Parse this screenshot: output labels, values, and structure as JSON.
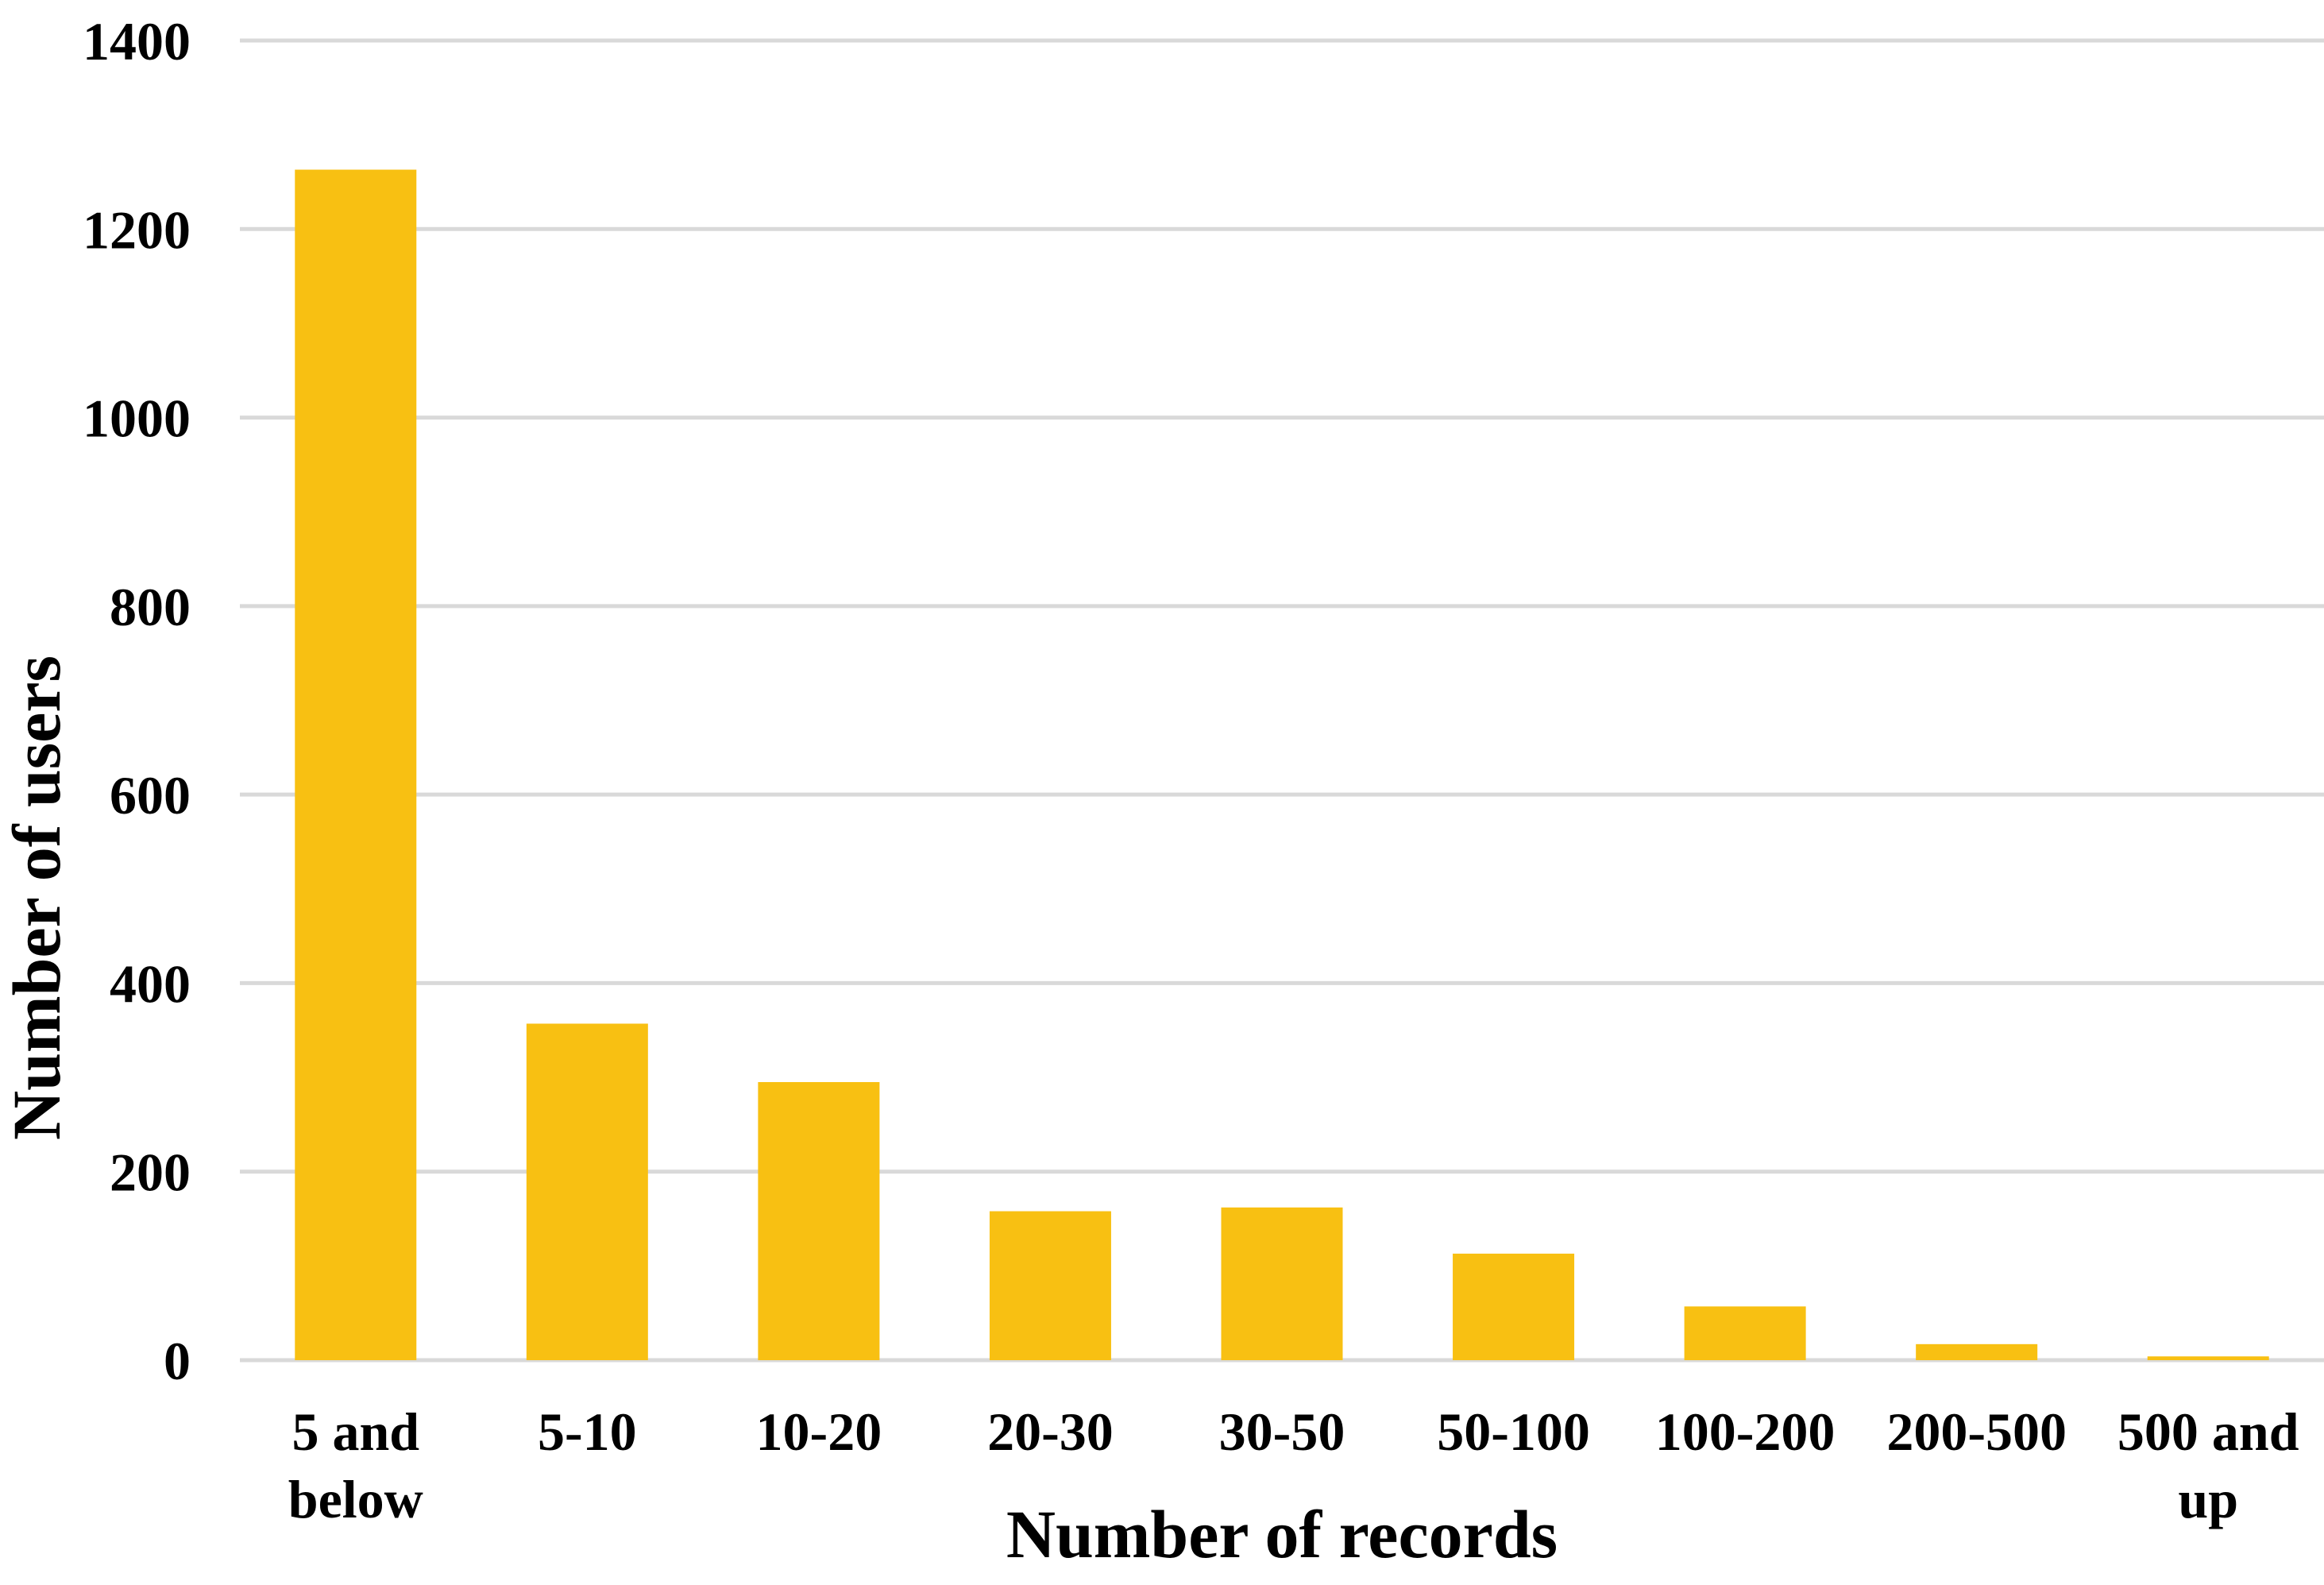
{
  "chart_data": {
    "type": "bar",
    "categories": [
      [
        "5 and",
        "below"
      ],
      [
        "5-10"
      ],
      [
        "10-20"
      ],
      [
        "20-30"
      ],
      [
        "30-50"
      ],
      [
        "50-100"
      ],
      [
        "100-200"
      ],
      [
        "200-500"
      ],
      [
        "500 and",
        "up"
      ]
    ],
    "values": [
      1263,
      357,
      295,
      158,
      162,
      113,
      57,
      17,
      4
    ],
    "title": "",
    "xlabel": "Number of records",
    "ylabel": "Number of users",
    "ylim": [
      0,
      1400
    ],
    "yticks": [
      "0",
      "200",
      "400",
      "600",
      "800",
      "1000",
      "1200",
      "1400"
    ],
    "grid": true,
    "legend": "none",
    "colors": {
      "bar": "#F8C012",
      "grid": "#D9D9D9",
      "text": "#000000"
    }
  }
}
